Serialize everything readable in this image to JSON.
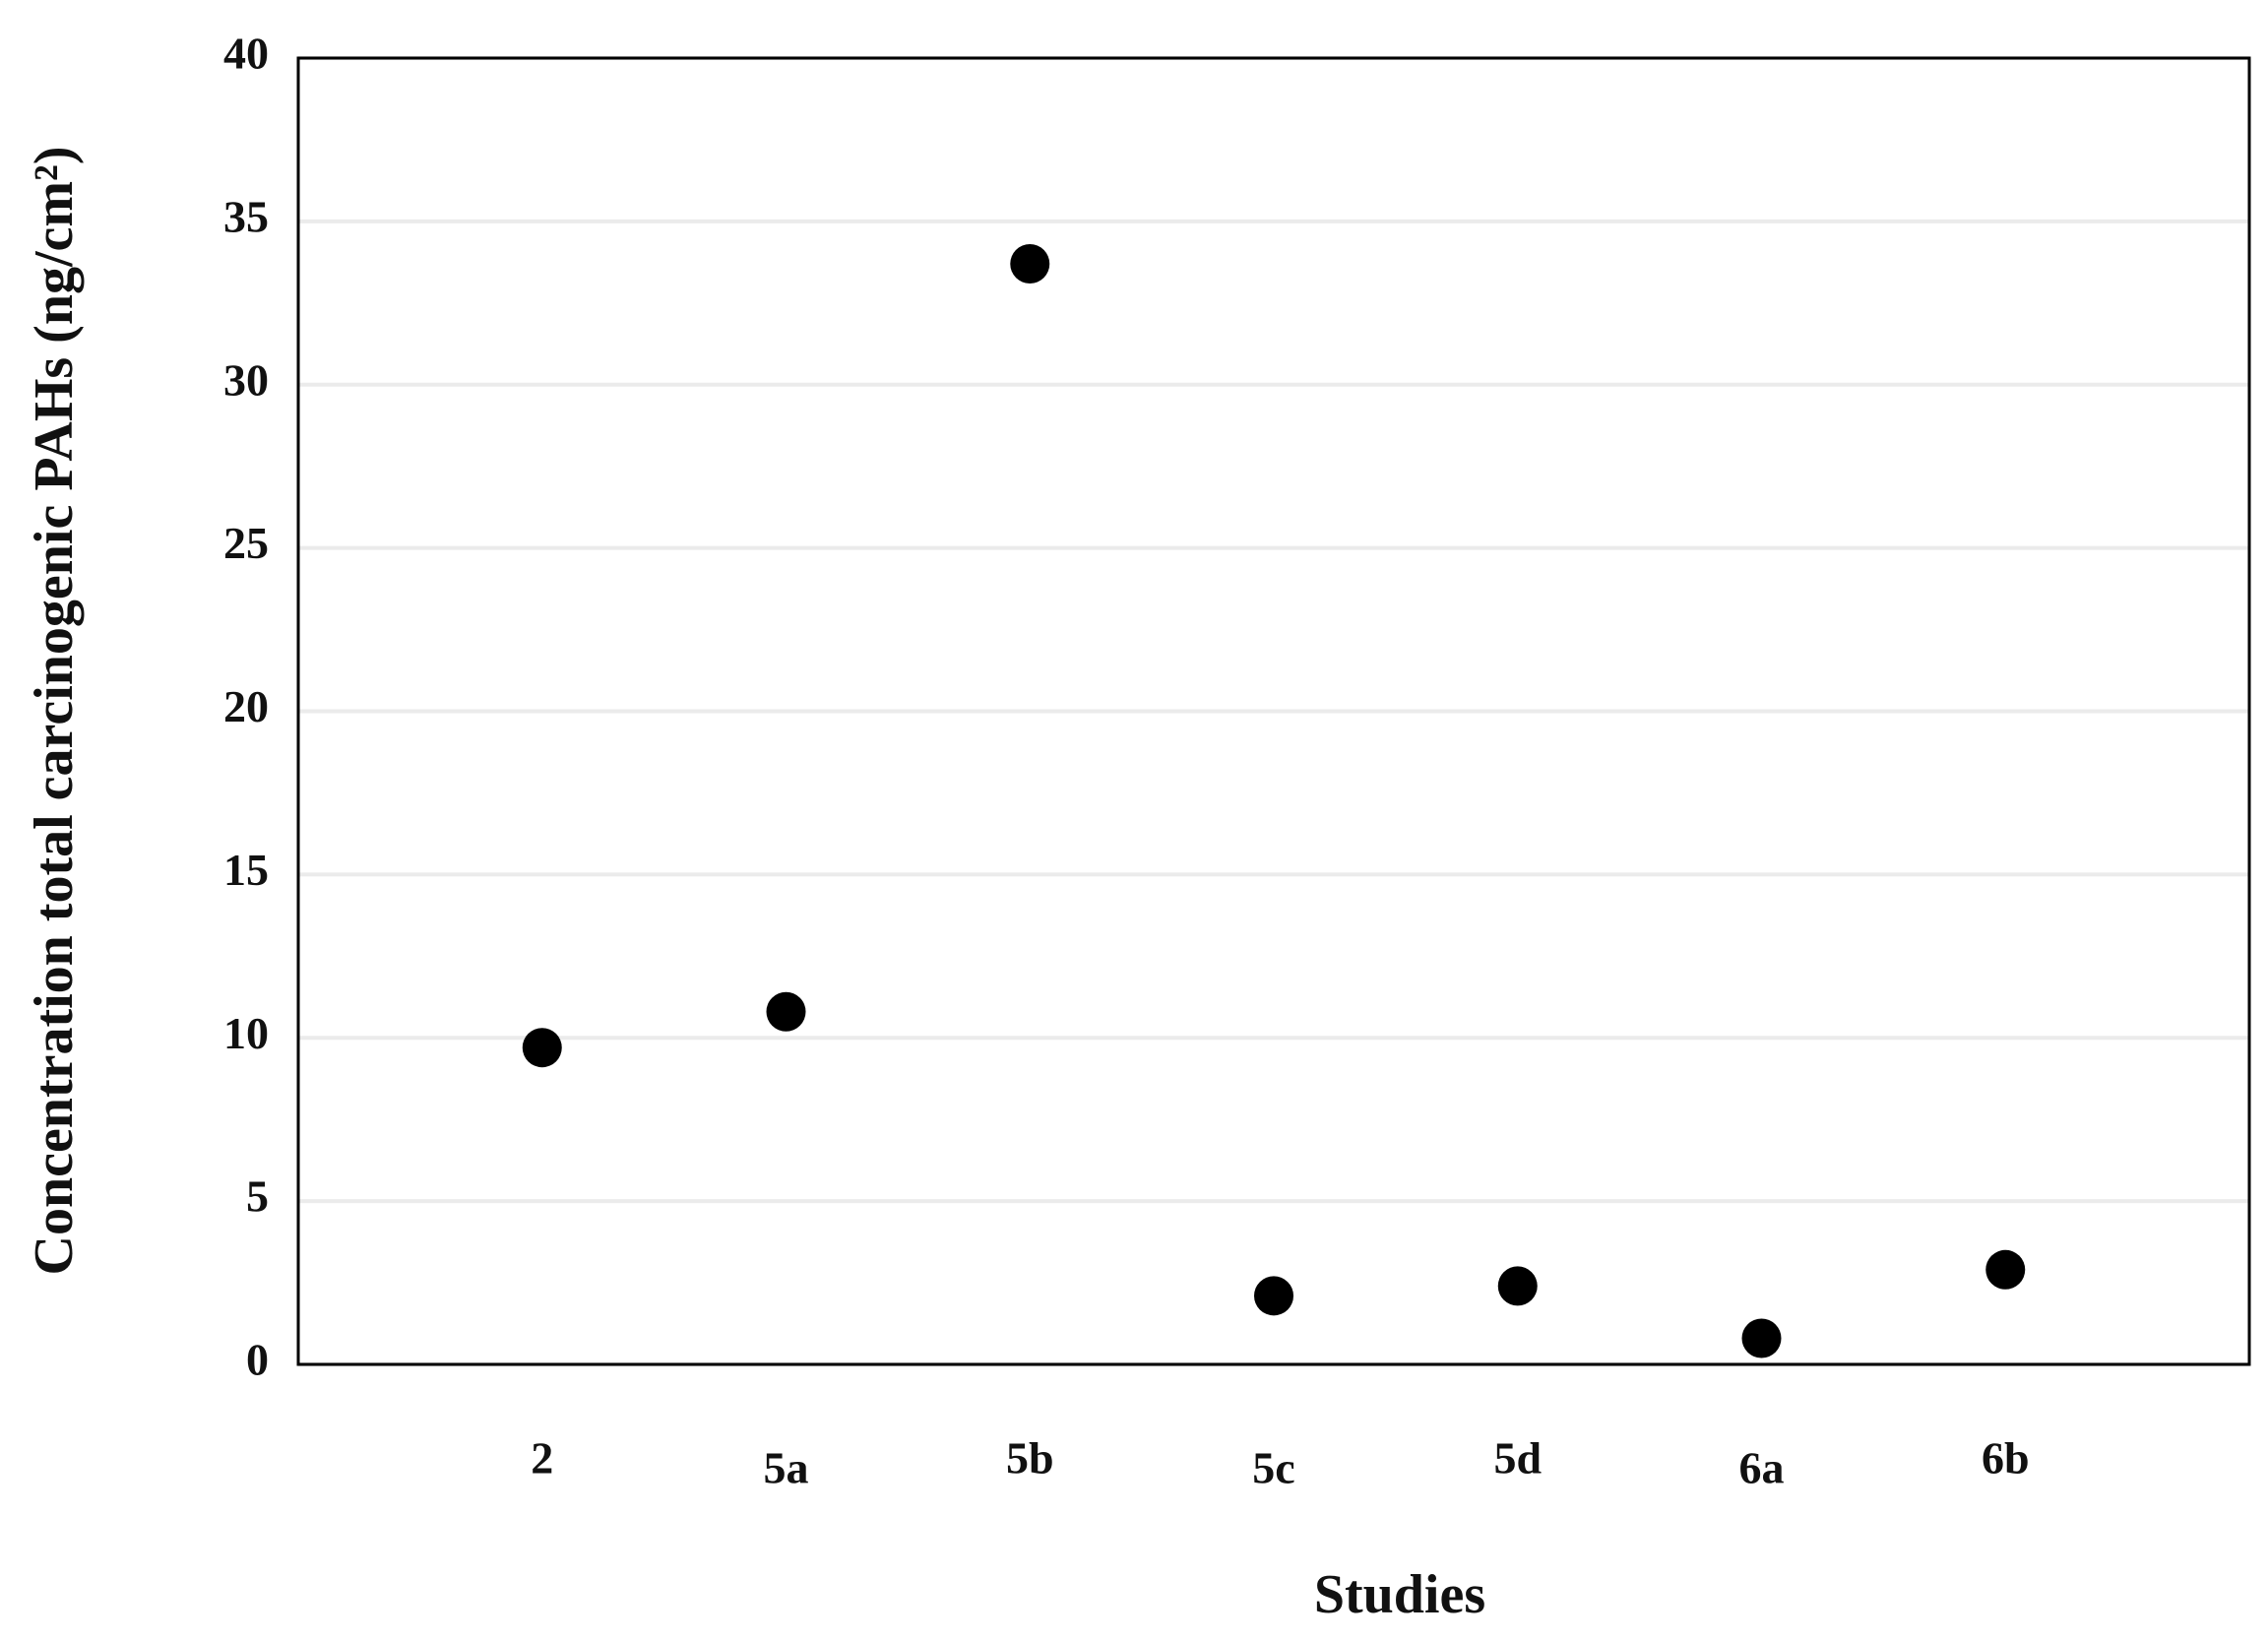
{
  "chart_data": {
    "type": "scatter",
    "categories": [
      "2",
      "5a",
      "5b",
      "5c",
      "5d",
      "6a",
      "6b"
    ],
    "values": [
      9.7,
      10.8,
      33.7,
      2.1,
      2.4,
      0.8,
      2.9
    ],
    "color": "#000000",
    "x_label": "Studies",
    "y_label": "Concentration total carcinogenic PAHs (ng/cm²)",
    "ylim": [
      0,
      40
    ],
    "yticks": [
      0,
      5,
      10,
      15,
      20,
      25,
      30,
      35,
      40
    ],
    "grid": true
  }
}
